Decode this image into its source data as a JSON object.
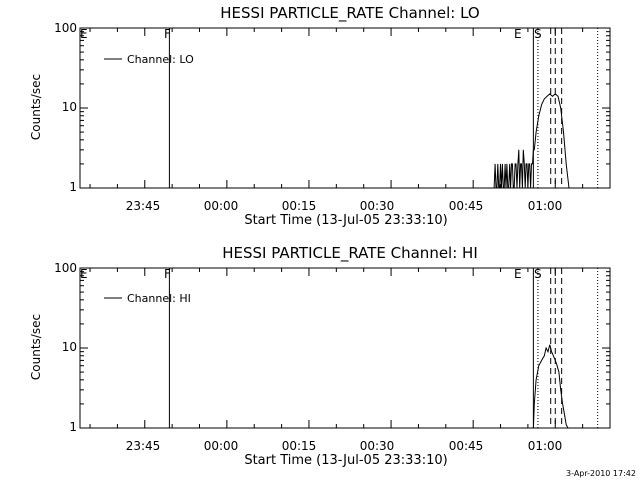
{
  "footer": {
    "date_stamp": "3-Apr-2010 17:42"
  },
  "colors": {
    "background": "#ffffff",
    "foreground": "#000000"
  },
  "chart_data": [
    {
      "type": "line",
      "title": "HESSI PARTICLE_RATE Channel: LO",
      "ylabel": "Counts/sec",
      "xlabel": "Start Time (13-Jul-05 23:33:10)",
      "yscale": "log",
      "ylim": [
        1,
        100
      ],
      "ytick_labels": [
        "1",
        "10",
        "100"
      ],
      "xlim": [
        "23:33:10",
        "01:10:00"
      ],
      "xtick_labels": [
        "23:45",
        "00:00",
        "00:15",
        "00:30",
        "00:45",
        "01:00"
      ],
      "grid": false,
      "legend": {
        "placement": "top-left",
        "entries": [
          "Channel: LO"
        ]
      },
      "markers": [
        {
          "label": "F",
          "time": "23:49:30",
          "style": "solid"
        },
        {
          "label": "",
          "time": "00:56:00",
          "style": "solid"
        },
        {
          "label": "E",
          "time": "00:56:50",
          "style": "dotted"
        },
        {
          "label": "",
          "time": "00:59:10",
          "style": "dashed"
        },
        {
          "label": "S",
          "time": "01:00:00",
          "style": "dashed"
        },
        {
          "label": "",
          "time": "01:01:10",
          "style": "dashed"
        },
        {
          "label": "",
          "time": "01:07:45",
          "style": "dotted"
        }
      ],
      "series": [
        {
          "name": "Channel: LO",
          "x": [
            "00:48:50",
            "00:49:00",
            "00:49:10",
            "00:49:20",
            "00:49:30",
            "00:49:40",
            "00:49:50",
            "00:50:00",
            "00:50:10",
            "00:50:20",
            "00:50:30",
            "00:50:40",
            "00:50:50",
            "00:51:00",
            "00:51:10",
            "00:51:20",
            "00:51:30",
            "00:51:40",
            "00:51:50",
            "00:52:00",
            "00:52:10",
            "00:52:20",
            "00:52:30",
            "00:52:40",
            "00:52:50",
            "00:53:00",
            "00:53:10",
            "00:53:20",
            "00:53:30",
            "00:53:40",
            "00:53:50",
            "00:54:00",
            "00:54:10",
            "00:54:20",
            "00:54:30",
            "00:54:40",
            "00:54:50",
            "00:55:00",
            "00:55:10",
            "00:55:20",
            "00:55:30",
            "00:55:40",
            "00:55:50",
            "00:56:00",
            "00:56:10",
            "00:56:30",
            "00:57:00",
            "00:57:30",
            "00:58:00",
            "00:58:30",
            "00:59:00",
            "00:59:30",
            "01:00:00",
            "01:00:30",
            "01:01:00",
            "01:01:30",
            "01:02:00",
            "01:02:30",
            "01:03:00"
          ],
          "y": [
            1,
            2,
            1,
            1,
            2,
            1,
            1,
            2,
            1,
            2,
            1,
            1,
            2,
            1,
            2,
            1,
            1,
            2,
            1,
            2,
            2,
            1,
            1,
            2,
            2,
            1,
            2,
            3,
            1,
            2,
            2,
            1,
            3,
            2,
            1,
            2,
            2,
            1,
            2,
            2,
            1,
            2,
            2,
            3,
            3,
            5,
            8,
            11,
            13,
            14,
            15,
            14,
            15,
            14,
            10,
            5,
            2,
            1,
            1
          ]
        }
      ]
    },
    {
      "type": "line",
      "title": "HESSI PARTICLE_RATE Channel: HI",
      "ylabel": "Counts/sec",
      "xlabel": "Start Time (13-Jul-05 23:33:10)",
      "yscale": "log",
      "ylim": [
        1,
        100
      ],
      "ytick_labels": [
        "1",
        "10",
        "100"
      ],
      "xlim": [
        "23:33:10",
        "01:10:00"
      ],
      "xtick_labels": [
        "23:45",
        "00:00",
        "00:15",
        "00:30",
        "00:45",
        "01:00"
      ],
      "grid": false,
      "legend": {
        "placement": "top-left",
        "entries": [
          "Channel: HI"
        ]
      },
      "markers": [
        {
          "label": "F",
          "time": "23:49:30",
          "style": "solid"
        },
        {
          "label": "",
          "time": "00:56:00",
          "style": "solid"
        },
        {
          "label": "E",
          "time": "00:56:50",
          "style": "dotted"
        },
        {
          "label": "",
          "time": "00:59:10",
          "style": "dashed"
        },
        {
          "label": "S",
          "time": "01:00:00",
          "style": "dashed"
        },
        {
          "label": "",
          "time": "01:01:10",
          "style": "dashed"
        },
        {
          "label": "",
          "time": "01:07:45",
          "style": "dotted"
        }
      ],
      "series": [
        {
          "name": "Channel: HI",
          "x": [
            "00:56:00",
            "00:56:10",
            "00:56:30",
            "00:57:00",
            "00:57:30",
            "00:58:00",
            "00:58:20",
            "00:58:40",
            "00:59:00",
            "00:59:20",
            "00:59:40",
            "01:00:00",
            "01:00:20",
            "01:00:40",
            "01:01:00",
            "01:01:20",
            "01:01:40",
            "01:02:00",
            "01:02:20"
          ],
          "y": [
            1,
            2,
            4,
            6,
            7,
            8,
            10,
            9,
            11,
            9,
            8,
            7,
            6,
            5,
            3,
            2,
            1.5,
            1.1,
            1
          ]
        }
      ]
    }
  ]
}
